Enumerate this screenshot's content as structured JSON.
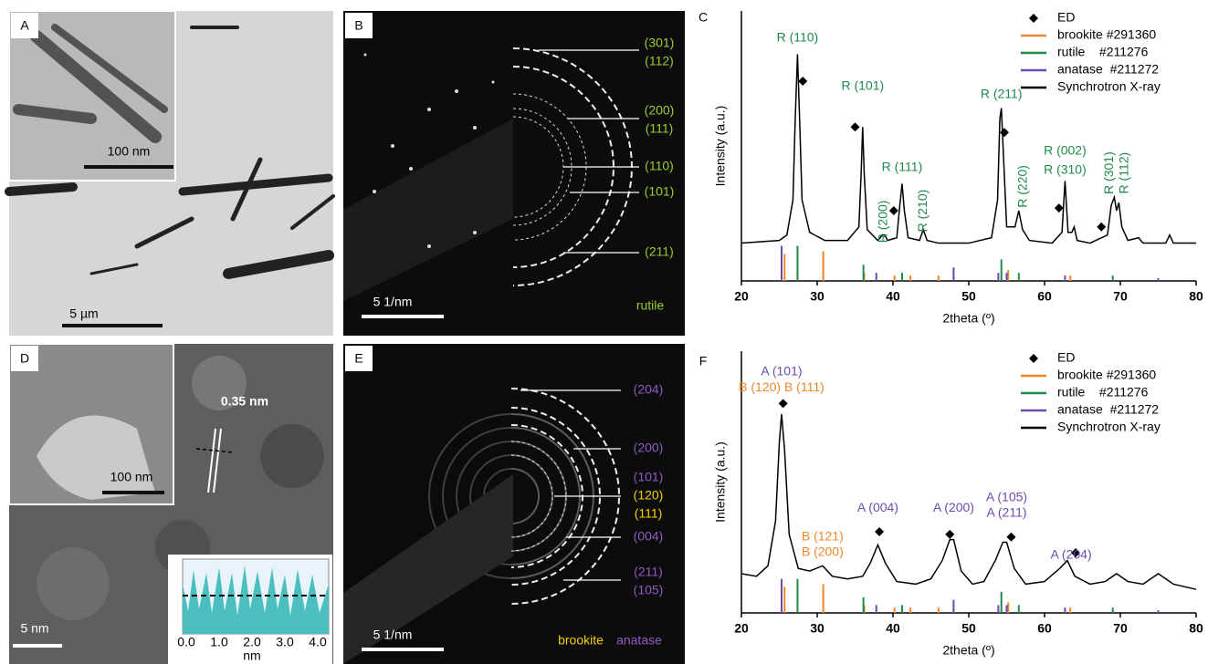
{
  "panels": {
    "A": {
      "label": "A",
      "inset_scale": "100 nm",
      "scale": "5 µm"
    },
    "B": {
      "label": "B",
      "rings": [
        "(301)",
        "(112)",
        "(200)",
        "(111)",
        "(110)",
        "(101)",
        "(211)"
      ],
      "scale": "5 1/nm",
      "phase": "rutile"
    },
    "D": {
      "label": "D",
      "spacing": "0.35 nm",
      "inset_scale": "100 nm",
      "scale": "5 nm",
      "profile_ticks": [
        "0.0",
        "1.0",
        "2.0",
        "3.0",
        "4.0"
      ],
      "profile_unit": "nm"
    },
    "E": {
      "label": "E",
      "rings": [
        "(204)",
        "(200)",
        "(101)",
        "(120)",
        "(111)",
        "(004)",
        "(211)",
        "(105)"
      ],
      "scale": "5 1/nm",
      "phases": [
        "brookite",
        "anatase"
      ]
    }
  },
  "chart_data": [
    {
      "type": "line",
      "panel_label": "C",
      "xlabel": "2theta (º)",
      "ylabel": "Intensity (a.u.)",
      "xlim": [
        20,
        80
      ],
      "xticks": [
        20,
        30,
        40,
        50,
        60,
        70,
        80
      ],
      "ylim": [
        0,
        100
      ],
      "legend": "upper right",
      "series": [
        {
          "name": "ED",
          "color": "#000000",
          "style": "marker",
          "x": [
            28.1,
            35,
            40.1,
            54.7,
            61.9,
            67.5
          ],
          "values": [
            74,
            57,
            26,
            55,
            27,
            20
          ]
        },
        {
          "name": "brookite #291360",
          "color": "#f0862a",
          "style": "stick",
          "x": [
            25.7,
            30.8,
            36.2,
            40.2,
            42.3,
            46,
            48,
            55.2,
            63.4
          ],
          "values": [
            10,
            11,
            3,
            2,
            2,
            2,
            3,
            4,
            2
          ]
        },
        {
          "name": "rutile    #211276",
          "color": "#1e8a4a",
          "style": "stick",
          "x": [
            27.4,
            36.1,
            41.2,
            54.3,
            56.6,
            69
          ],
          "values": [
            13,
            6,
            3,
            8,
            3,
            2
          ]
        },
        {
          "name": "anatase  #211272",
          "color": "#6a4bb0",
          "style": "stick",
          "x": [
            25.3,
            37.8,
            48,
            53.9,
            55,
            62.7,
            75
          ],
          "values": [
            13,
            3,
            5,
            3,
            3,
            2,
            1
          ]
        },
        {
          "name": "Synchrotron X-ray",
          "color": "#000000",
          "style": "line",
          "x": [
            20,
            25,
            26,
            26.8,
            27.1,
            27.4,
            27.7,
            28.0,
            29,
            31,
            34,
            35.5,
            35.8,
            36.0,
            36.2,
            36.6,
            38,
            38.6,
            38.9,
            39.3,
            40.5,
            40.9,
            41.2,
            41.5,
            42,
            43.5,
            44,
            44.5,
            46,
            50,
            53,
            53.8,
            54.1,
            54.3,
            54.6,
            55,
            56.1,
            56.6,
            57.1,
            58,
            61,
            62.3,
            62.7,
            63.1,
            63.6,
            63.9,
            64.3,
            66,
            68.3,
            68.8,
            69.2,
            69.5,
            69.8,
            70.2,
            71,
            72.4,
            73,
            76,
            76.5,
            77,
            80
          ],
          "values": [
            14,
            15,
            17,
            30,
            60,
            84,
            58,
            30,
            18,
            15,
            15,
            20,
            40,
            57,
            40,
            19,
            15,
            17,
            17,
            15,
            16,
            28,
            36,
            26,
            16,
            15,
            19,
            15,
            14,
            14,
            16,
            30,
            60,
            64,
            45,
            20,
            20,
            26,
            19,
            15,
            14,
            18,
            37,
            18,
            18,
            20,
            15,
            14,
            17,
            28,
            31,
            26,
            29,
            20,
            15,
            16,
            14,
            14,
            17,
            14,
            14
          ]
        }
      ],
      "annotations": [
        {
          "text": "R (110)",
          "x": 27.4,
          "y": 90,
          "color": "#1e8a4a"
        },
        {
          "text": "R (101)",
          "x": 36,
          "y": 72,
          "color": "#1e8a4a"
        },
        {
          "text": "R (200)",
          "x": 38.8,
          "y": 22,
          "color": "#1e8a4a",
          "vertical": true
        },
        {
          "text": "R (111)",
          "x": 41.2,
          "y": 42,
          "color": "#1e8a4a"
        },
        {
          "text": "R (210)",
          "x": 44,
          "y": 26,
          "color": "#1e8a4a",
          "vertical": true
        },
        {
          "text": "R (211)",
          "x": 54.3,
          "y": 69,
          "color": "#1e8a4a"
        },
        {
          "text": "R (220)",
          "x": 57.2,
          "y": 35,
          "color": "#1e8a4a",
          "vertical": true
        },
        {
          "text": "R (002)",
          "x": 62.7,
          "y": 48,
          "color": "#1e8a4a"
        },
        {
          "text": "R (310)",
          "x": 62.7,
          "y": 41,
          "color": "#1e8a4a"
        },
        {
          "text": "R (301)",
          "x": 68.6,
          "y": 40,
          "color": "#1e8a4a",
          "vertical": true
        },
        {
          "text": "R (112)",
          "x": 70.6,
          "y": 40,
          "color": "#1e8a4a",
          "vertical": true
        }
      ]
    },
    {
      "type": "line",
      "panel_label": "F",
      "xlabel": "2theta (º)",
      "ylabel": "Intensity (a.u.)",
      "xlim": [
        20,
        80
      ],
      "xticks": [
        20,
        30,
        40,
        50,
        60,
        70,
        80
      ],
      "ylim": [
        0,
        100
      ],
      "legend": "upper right",
      "series": [
        {
          "name": "ED",
          "color": "#000000",
          "style": "marker",
          "x": [
            25.5,
            38.2,
            47.5,
            55.6,
            64.1
          ],
          "values": [
            80,
            31,
            30,
            29,
            23
          ]
        },
        {
          "name": "brookite #291360",
          "color": "#f0862a",
          "style": "stick",
          "x": [
            25.7,
            30.8,
            36.2,
            40.2,
            42.3,
            46,
            48,
            55.2,
            63.4
          ],
          "values": [
            10,
            11,
            3,
            2,
            2,
            2,
            3,
            4,
            2
          ]
        },
        {
          "name": "rutile    #211276",
          "color": "#1e8a4a",
          "style": "stick",
          "x": [
            27.4,
            36.1,
            41.2,
            54.3,
            56.6,
            69
          ],
          "values": [
            13,
            6,
            3,
            8,
            3,
            2
          ]
        },
        {
          "name": "anatase  #211272",
          "color": "#6a4bb0",
          "style": "stick",
          "x": [
            25.3,
            37.8,
            48,
            53.9,
            55,
            62.7,
            75
          ],
          "values": [
            13,
            3,
            5,
            3,
            3,
            2,
            1
          ]
        },
        {
          "name": "Synchrotron X-ray",
          "color": "#000000",
          "style": "line",
          "x": [
            20,
            22,
            23.5,
            24.5,
            25,
            25.3,
            25.7,
            26.3,
            27.5,
            29,
            30.7,
            32,
            34,
            36,
            37,
            38,
            39,
            40.5,
            43,
            45,
            46.5,
            47.5,
            48,
            49,
            50.5,
            52,
            53.5,
            54.5,
            55,
            56,
            57.5,
            60,
            62,
            63,
            64,
            66,
            68,
            69.5,
            71,
            73,
            75,
            77,
            80
          ],
          "values": [
            15,
            14,
            18,
            35,
            65,
            76,
            62,
            30,
            17,
            16,
            18,
            14,
            13,
            14,
            19,
            26,
            19,
            12,
            11,
            13,
            20,
            28,
            28,
            16,
            11,
            12,
            20,
            27,
            27,
            17,
            11,
            12,
            17,
            20,
            14,
            11,
            12,
            15,
            12,
            11,
            15,
            11,
            9
          ]
        }
      ],
      "annotations": [
        {
          "text": "A (101)",
          "x": 25.3,
          "y": 92,
          "color": "#6a4bb0"
        },
        {
          "text": "B (120) B (111)",
          "x": 25.3,
          "y": 86,
          "color": "#f0862a"
        },
        {
          "text": "B (121)",
          "x": 30.7,
          "y": 29,
          "color": "#f0862a"
        },
        {
          "text": "B (200)",
          "x": 30.7,
          "y": 23,
          "color": "#f0862a"
        },
        {
          "text": "A (004)",
          "x": 38,
          "y": 40,
          "color": "#6a4bb0"
        },
        {
          "text": "A (200)",
          "x": 48,
          "y": 40,
          "color": "#6a4bb0"
        },
        {
          "text": "A (105)",
          "x": 55,
          "y": 44,
          "color": "#6a4bb0"
        },
        {
          "text": "A (211)",
          "x": 55,
          "y": 38,
          "color": "#6a4bb0"
        },
        {
          "text": "A (204)",
          "x": 63.5,
          "y": 22,
          "color": "#6a4bb0"
        }
      ]
    }
  ]
}
